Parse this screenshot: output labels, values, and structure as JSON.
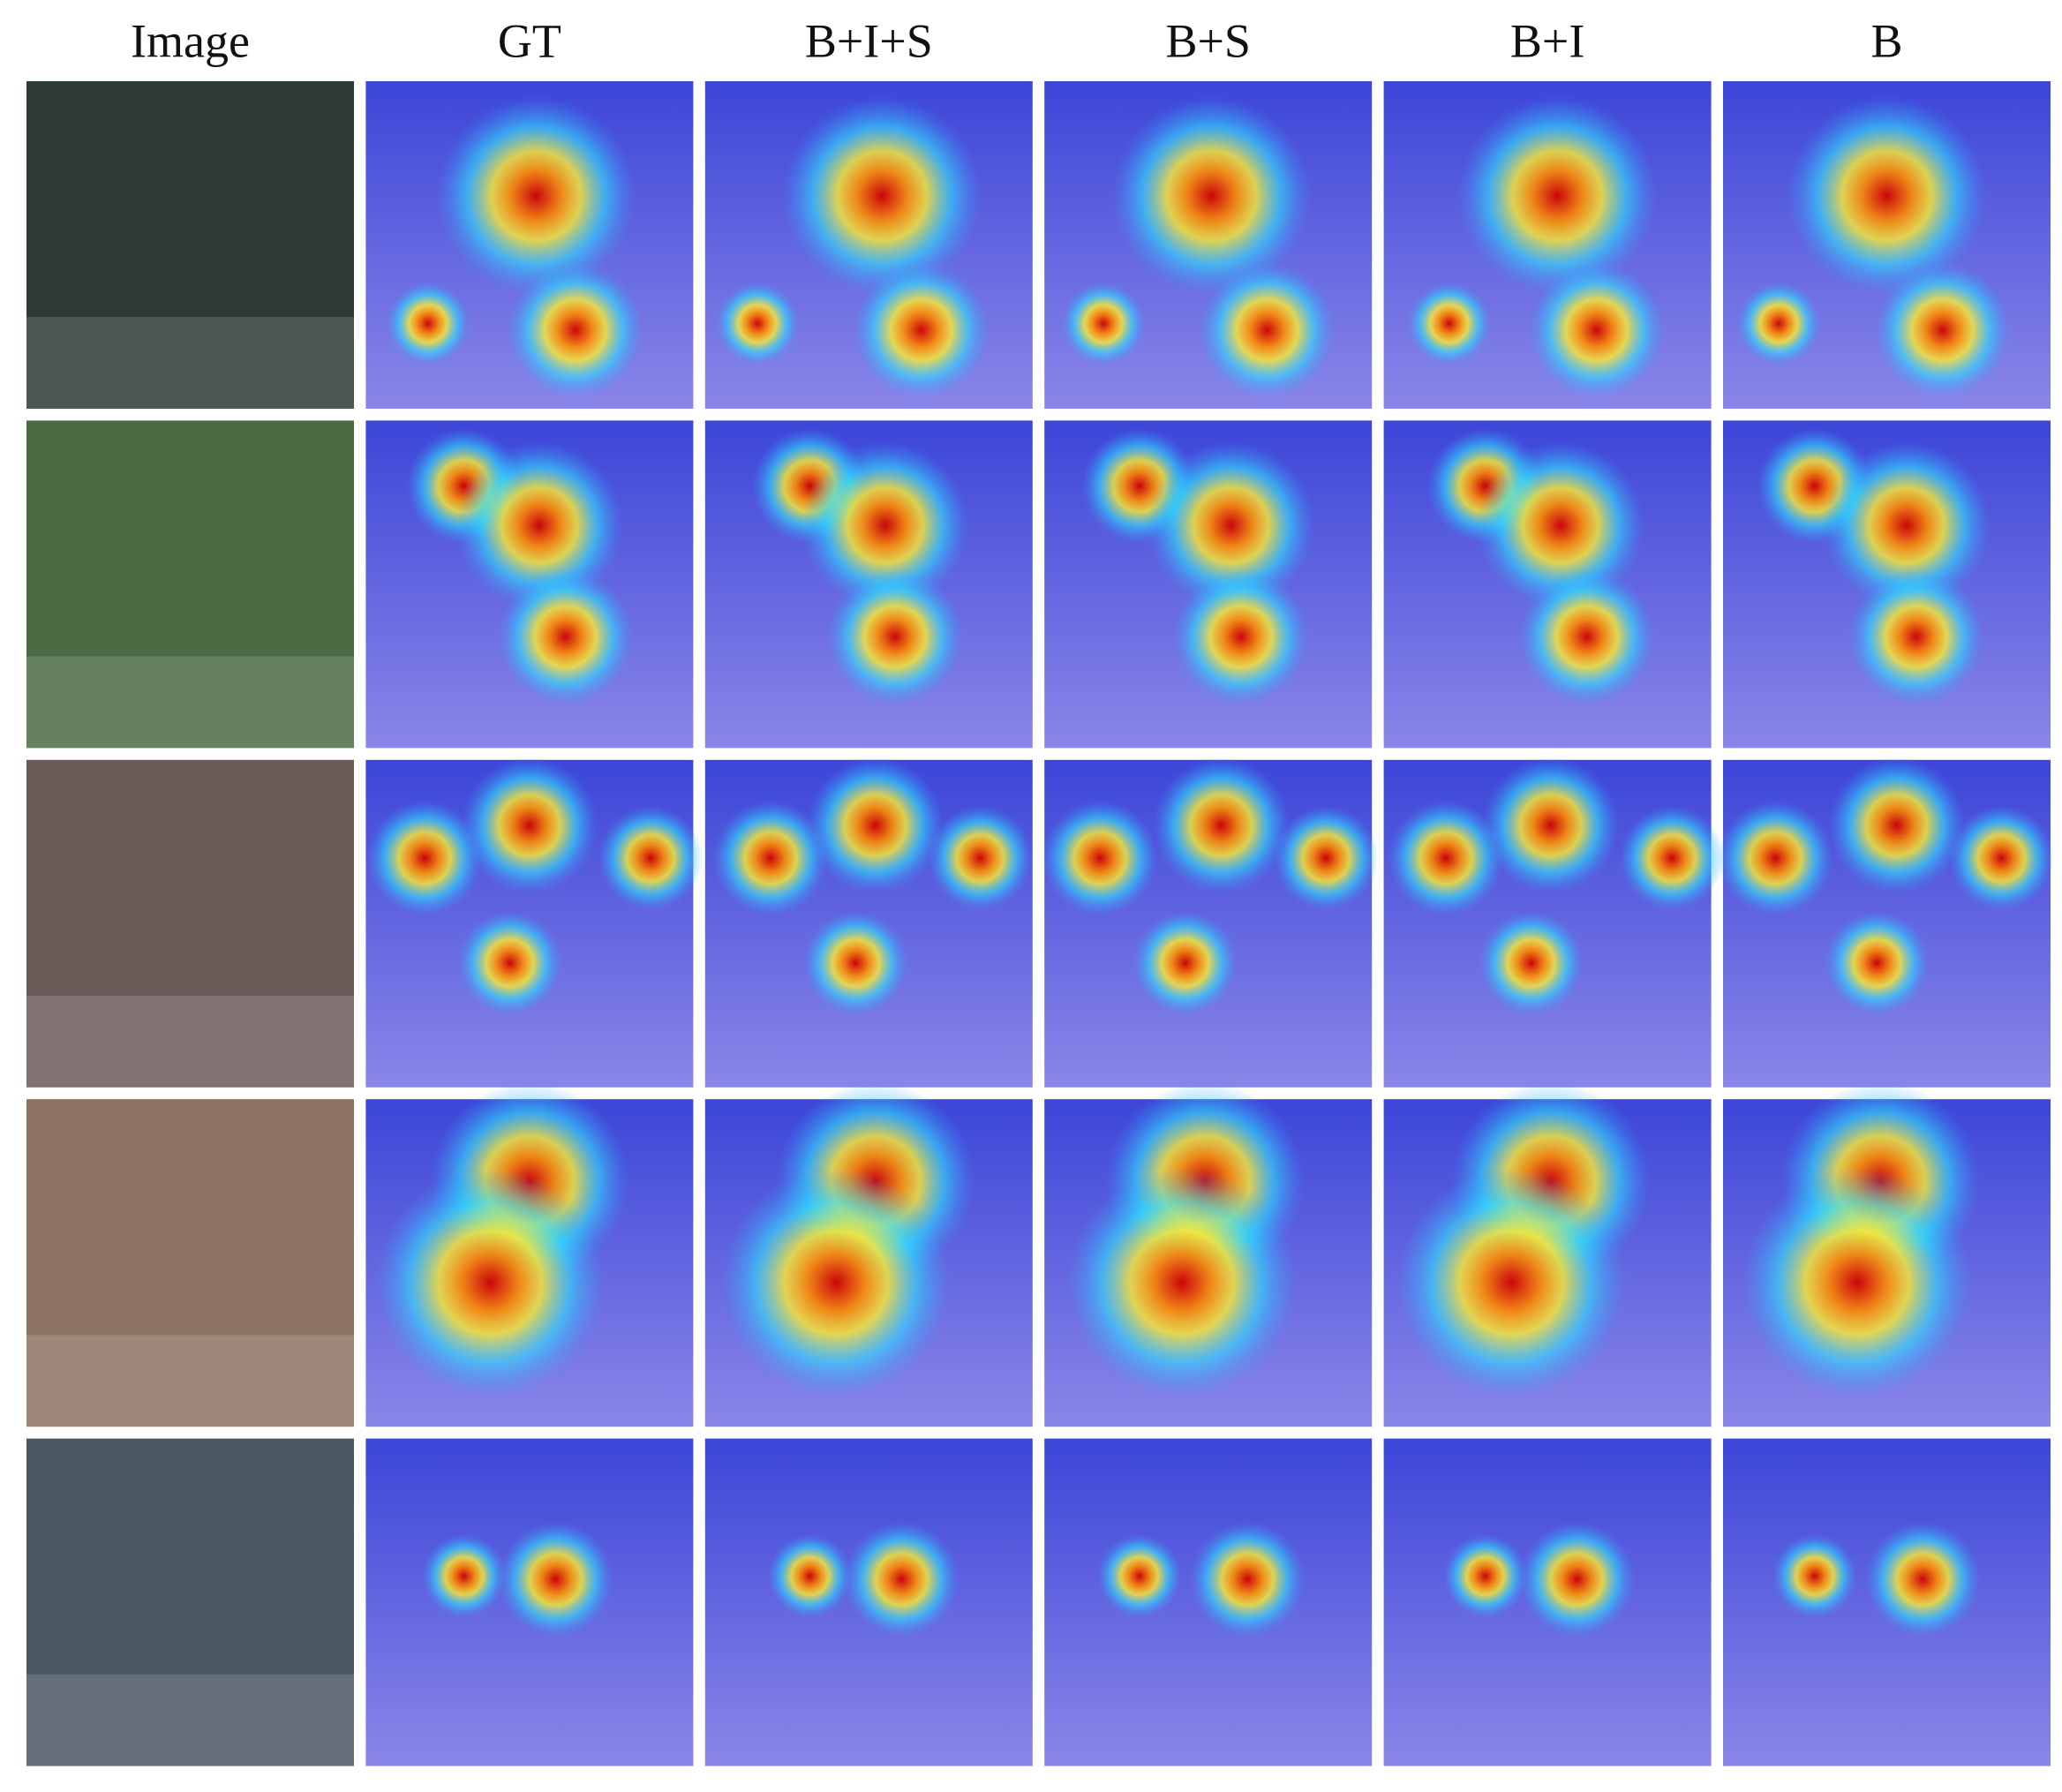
{
  "columns": [
    "Image",
    "GT",
    "B+I+S",
    "B+S",
    "B+I",
    "B"
  ]
}
